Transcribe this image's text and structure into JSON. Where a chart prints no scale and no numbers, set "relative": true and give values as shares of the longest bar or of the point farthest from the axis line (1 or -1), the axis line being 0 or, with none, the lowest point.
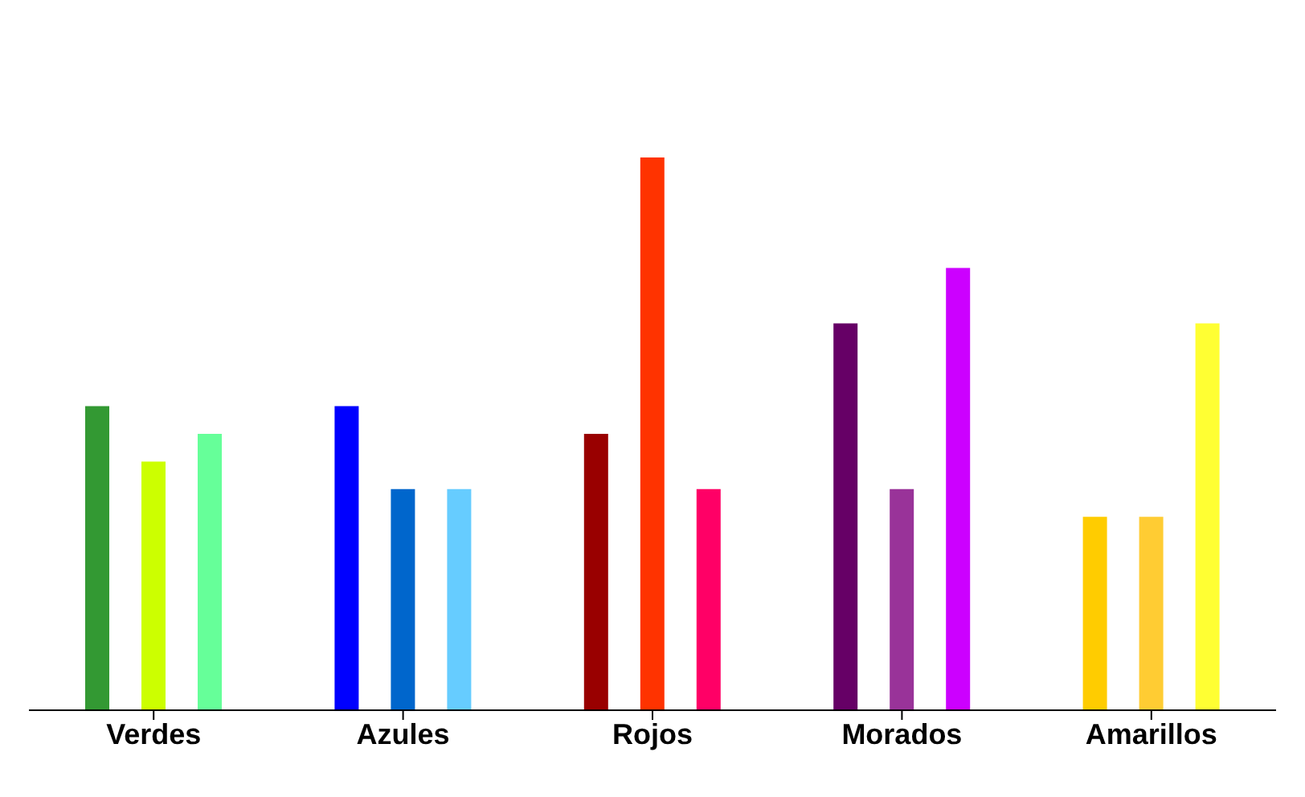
{
  "chart_data": {
    "type": "bar",
    "relative": true,
    "categories": [
      "Verdes",
      "Azules",
      "Rojos",
      "Morados",
      "Amarillos"
    ],
    "series": [
      {
        "colors": [
          "#339933",
          "#0000ff",
          "#990000",
          "#660066",
          "#ffcc00"
        ],
        "values": [
          0.55,
          0.55,
          0.5,
          0.7,
          0.35
        ]
      },
      {
        "colors": [
          "#ccff00",
          "#0066cc",
          "#ff3300",
          "#993399",
          "#ffcc33"
        ],
        "values": [
          0.45,
          0.4,
          1,
          0.4,
          0.35
        ]
      },
      {
        "colors": [
          "#66ff99",
          "#66ccff",
          "#ff0066",
          "#cc00ff",
          "#ffff33"
        ],
        "values": [
          0.5,
          0.4,
          0.4,
          0.8,
          0.7
        ]
      }
    ],
    "grid": false,
    "legend": false
  }
}
